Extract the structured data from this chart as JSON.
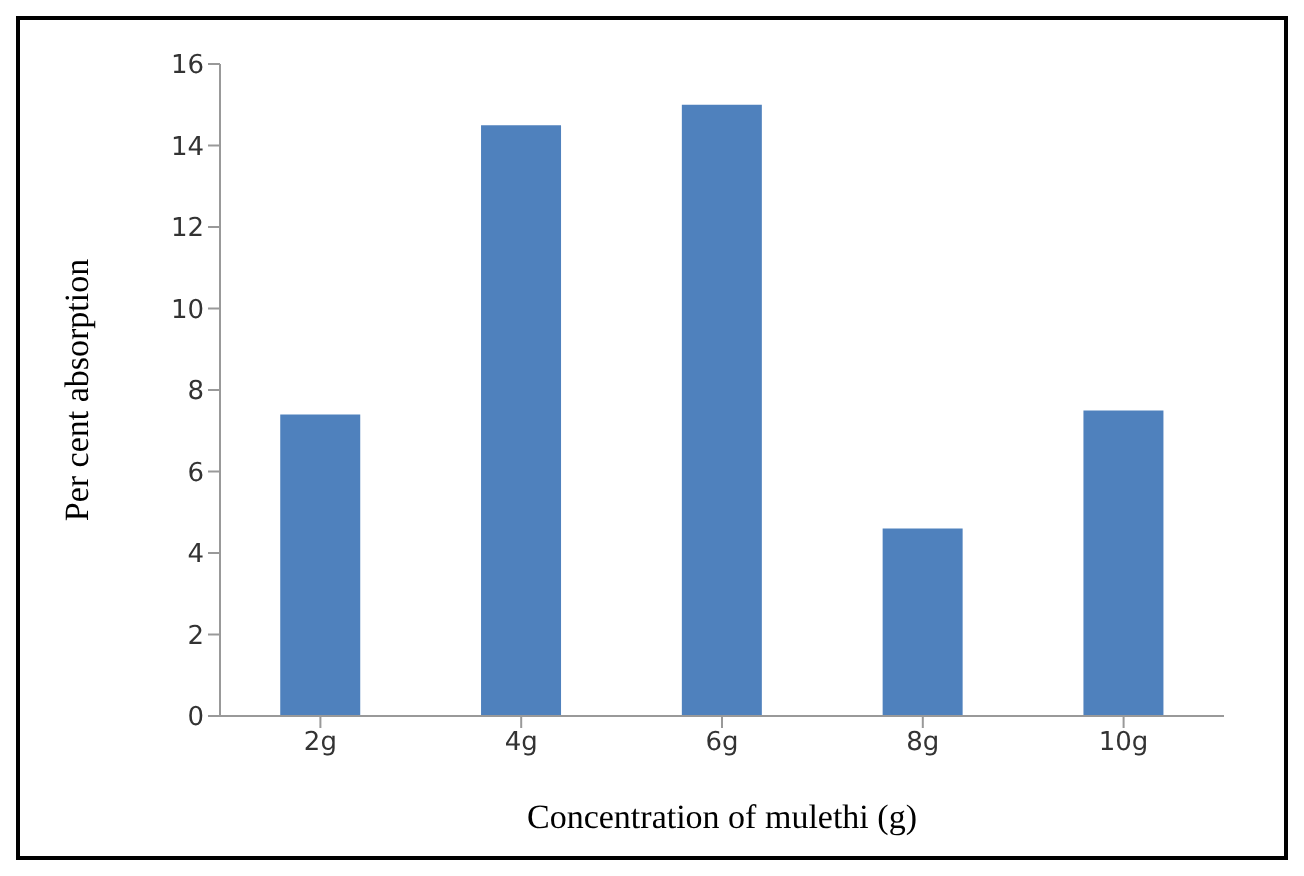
{
  "chart_data": {
    "type": "bar",
    "xlabel": "Concentration of mulethi (g)",
    "ylabel": "Per cent absorption",
    "categories": [
      "2g",
      "4g",
      "6g",
      "8g",
      "10g"
    ],
    "values": [
      7.4,
      14.5,
      15.0,
      4.6,
      7.5
    ],
    "color": "#4f81bd",
    "ylim": [
      0,
      16
    ],
    "yticks": [
      0,
      2,
      4,
      6,
      8,
      10,
      12,
      14,
      16
    ],
    "grid": false
  }
}
